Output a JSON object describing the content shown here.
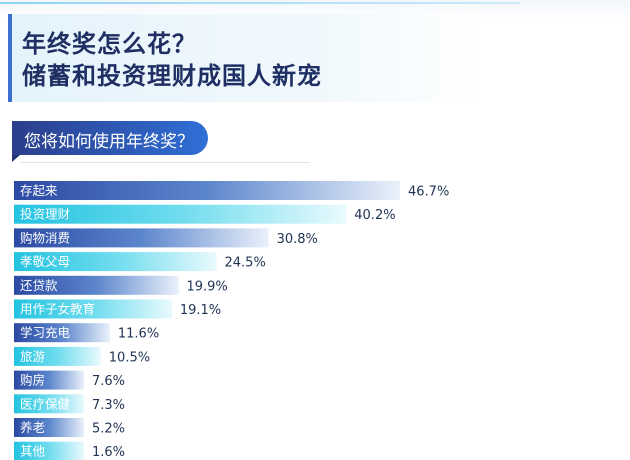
{
  "header": {
    "title_line1": "年终奖怎么花？",
    "title_line2": "储蓄和投资理财成国人新宠"
  },
  "question": "您将如何使用年终奖？",
  "colors": {
    "dark_bar_start": "#2b4aa3",
    "light_bar_start": "#23c3e0",
    "title": "#1f2f63"
  },
  "chart_data": {
    "type": "bar",
    "orientation": "horizontal",
    "title": "您将如何使用年终奖？",
    "categories": [
      "存起来",
      "投资理财",
      "购物消费",
      "孝敬父母",
      "还贷款",
      "用作子女教育",
      "学习充电",
      "旅游",
      "购房",
      "医疗保健",
      "养老",
      "其他"
    ],
    "values": [
      46.7,
      40.2,
      30.8,
      24.5,
      19.9,
      19.1,
      11.6,
      10.5,
      7.6,
      7.3,
      5.2,
      1.6
    ],
    "value_labels": [
      "46.7%",
      "40.2%",
      "30.8%",
      "24.5%",
      "19.9%",
      "19.1%",
      "11.6%",
      "10.5%",
      "7.6%",
      "7.3%",
      "5.2%",
      "1.6%"
    ],
    "unit": "%",
    "xlabel": "",
    "ylabel": "",
    "grid": false,
    "legend": "none"
  }
}
